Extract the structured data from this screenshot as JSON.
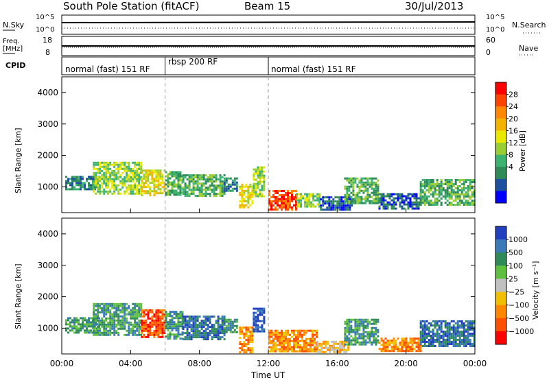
{
  "header": {
    "station": "South Pole Station (fitACF)",
    "beam": "Beam 15",
    "date": "30/Jul/2013"
  },
  "top_panels": {
    "nsky_label": "N.Sky",
    "nsky_ticks": [
      "10^5",
      "10^0"
    ],
    "nsearch_label": "N.Search",
    "nsearch_ticks": [
      "10^5",
      "10^0"
    ],
    "freq_label_1": "Freq.",
    "freq_label_2": "[MHz]",
    "freq_ticks": [
      "18",
      "8"
    ],
    "nave_label": "Nave",
    "nave_ticks": [
      "60",
      "0"
    ],
    "cpid_label": "CPID",
    "cpid_segments": [
      {
        "label": "normal (fast) 151 RF",
        "start_hour": 0,
        "end_hour": 6
      },
      {
        "label": "rbsp 200 RF",
        "start_hour": 6,
        "end_hour": 12
      },
      {
        "label": "normal (fast) 151 RF",
        "start_hour": 12,
        "end_hour": 24
      }
    ]
  },
  "colorbars": {
    "power": {
      "label": "Power [dB]",
      "ticks": [
        "28",
        "24",
        "20",
        "16",
        "12",
        "8",
        "4"
      ],
      "colors": [
        "#ff0000",
        "#ff4400",
        "#ff8800",
        "#f2b400",
        "#e8e800",
        "#9acd32",
        "#3cb371",
        "#2e8b57",
        "#1e50a0",
        "#0000ff"
      ]
    },
    "velocity": {
      "label": "Velocity [m s⁻¹]",
      "ticks": [
        "1000",
        "500",
        "100",
        "25",
        "−25",
        "−100",
        "−500",
        "−1000"
      ],
      "colors": [
        "#2040c0",
        "#3a7ab8",
        "#2e8b57",
        "#5fbf3f",
        "#c0c0c0",
        "#f0c000",
        "#ff8800",
        "#ff5000",
        "#ff0000"
      ]
    }
  },
  "x_axis": {
    "label": "Time UT",
    "ticks": [
      "00:00",
      "04:00",
      "08:00",
      "12:00",
      "16:00",
      "20:00",
      "00:00"
    ],
    "tick_hours": [
      0,
      4,
      8,
      12,
      16,
      20,
      24
    ]
  },
  "chart_data": [
    {
      "type": "heatmap",
      "title": "",
      "variable": "Power",
      "xlabel": "",
      "ylabel": "Slant Range [km]",
      "xlim_hours": [
        0,
        24
      ],
      "ylim": [
        180,
        4500
      ],
      "yticks": [
        1000,
        2000,
        3000,
        4000
      ],
      "ytick_labels": [
        "1000",
        "2000",
        "3000",
        "4000"
      ],
      "dashed_markers_hours": [
        6,
        12
      ],
      "patches": [
        {
          "h0": 0.2,
          "h1": 2.2,
          "r0": 900,
          "r1": 1350,
          "level": 2
        },
        {
          "h0": 1.8,
          "h1": 4.6,
          "r0": 800,
          "r1": 1800,
          "level": 4
        },
        {
          "h0": 4.6,
          "h1": 6.0,
          "r0": 700,
          "r1": 1550,
          "level": 5
        },
        {
          "h0": 6.0,
          "h1": 7.0,
          "r0": 750,
          "r1": 1500,
          "level": 3
        },
        {
          "h0": 7.0,
          "h1": 9.4,
          "r0": 700,
          "r1": 1400,
          "level": 3
        },
        {
          "h0": 9.4,
          "h1": 10.2,
          "r0": 900,
          "r1": 1300,
          "level": 2
        },
        {
          "h0": 10.3,
          "h1": 11.1,
          "r0": 350,
          "r1": 1100,
          "level": 5
        },
        {
          "h0": 11.1,
          "h1": 11.8,
          "r0": 700,
          "r1": 1650,
          "level": 4
        },
        {
          "h0": 12.0,
          "h1": 13.6,
          "r0": 300,
          "r1": 900,
          "level": 8
        },
        {
          "h0": 13.6,
          "h1": 15.0,
          "r0": 350,
          "r1": 800,
          "level": 4
        },
        {
          "h0": 15.0,
          "h1": 16.8,
          "r0": 300,
          "r1": 700,
          "level": 1
        },
        {
          "h0": 16.4,
          "h1": 18.4,
          "r0": 500,
          "r1": 1300,
          "level": 3
        },
        {
          "h0": 18.4,
          "h1": 20.8,
          "r0": 300,
          "r1": 800,
          "level": 1
        },
        {
          "h0": 20.8,
          "h1": 24.0,
          "r0": 450,
          "r1": 1250,
          "level": 3
        }
      ]
    },
    {
      "type": "heatmap",
      "title": "",
      "variable": "Velocity",
      "xlabel": "Time UT",
      "ylabel": "Slant Range [km]",
      "xlim_hours": [
        0,
        24
      ],
      "ylim": [
        180,
        4500
      ],
      "yticks": [
        1000,
        2000,
        3000,
        4000
      ],
      "ytick_labels": [
        "1000",
        "2000",
        "3000",
        "4000"
      ],
      "dashed_markers_hours": [
        6,
        12
      ],
      "patches": [
        {
          "h0": 0.2,
          "h1": 2.2,
          "r0": 850,
          "r1": 1350,
          "level": 6
        },
        {
          "h0": 1.8,
          "h1": 4.6,
          "r0": 800,
          "r1": 1800,
          "level": 6
        },
        {
          "h0": 4.6,
          "h1": 6.0,
          "r0": 700,
          "r1": 1600,
          "level": 1
        },
        {
          "h0": 6.0,
          "h1": 7.0,
          "r0": 650,
          "r1": 1550,
          "level": 6
        },
        {
          "h0": 7.0,
          "h1": 9.4,
          "r0": 650,
          "r1": 1400,
          "level": 7
        },
        {
          "h0": 9.4,
          "h1": 10.2,
          "r0": 850,
          "r1": 1300,
          "level": 6
        },
        {
          "h0": 10.3,
          "h1": 11.1,
          "r0": 250,
          "r1": 1050,
          "level": 2
        },
        {
          "h0": 11.1,
          "h1": 11.8,
          "r0": 900,
          "r1": 1650,
          "level": 8
        },
        {
          "h0": 12.0,
          "h1": 14.8,
          "r0": 250,
          "r1": 950,
          "level": 2
        },
        {
          "h0": 14.8,
          "h1": 16.6,
          "r0": 250,
          "r1": 600,
          "level": 3
        },
        {
          "h0": 16.4,
          "h1": 18.4,
          "r0": 450,
          "r1": 1300,
          "level": 6
        },
        {
          "h0": 18.4,
          "h1": 20.8,
          "r0": 250,
          "r1": 700,
          "level": 2
        },
        {
          "h0": 20.8,
          "h1": 24.0,
          "r0": 450,
          "r1": 1250,
          "level": 7
        }
      ]
    }
  ]
}
